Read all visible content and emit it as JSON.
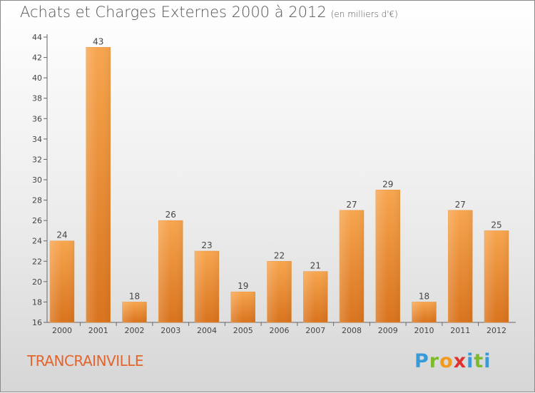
{
  "header": {
    "title": "Achats et Charges Externes 2000 à 2012",
    "unit": "(en milliers d'€)"
  },
  "footer": {
    "place": "TRANCRAINVILLE",
    "logo": "Proxiti"
  },
  "colors": {
    "bar_light": "#f7a54e",
    "bar_dark": "#d9731d",
    "place_text": "#e2652e"
  },
  "chart_data": {
    "type": "bar",
    "title": "Achats et Charges Externes 2000 à 2012",
    "subtitle": "(en milliers d'€)",
    "categories": [
      "2000",
      "2001",
      "2002",
      "2003",
      "2004",
      "2005",
      "2006",
      "2007",
      "2008",
      "2009",
      "2010",
      "2011",
      "2012"
    ],
    "values": [
      24,
      43,
      18,
      26,
      23,
      19,
      22,
      21,
      27,
      29,
      18,
      27,
      25
    ],
    "ylim": [
      16,
      44
    ],
    "yticks": [
      16,
      18,
      20,
      22,
      24,
      26,
      28,
      30,
      32,
      34,
      36,
      38,
      40,
      42,
      44
    ],
    "grid": false,
    "legend": "none"
  }
}
